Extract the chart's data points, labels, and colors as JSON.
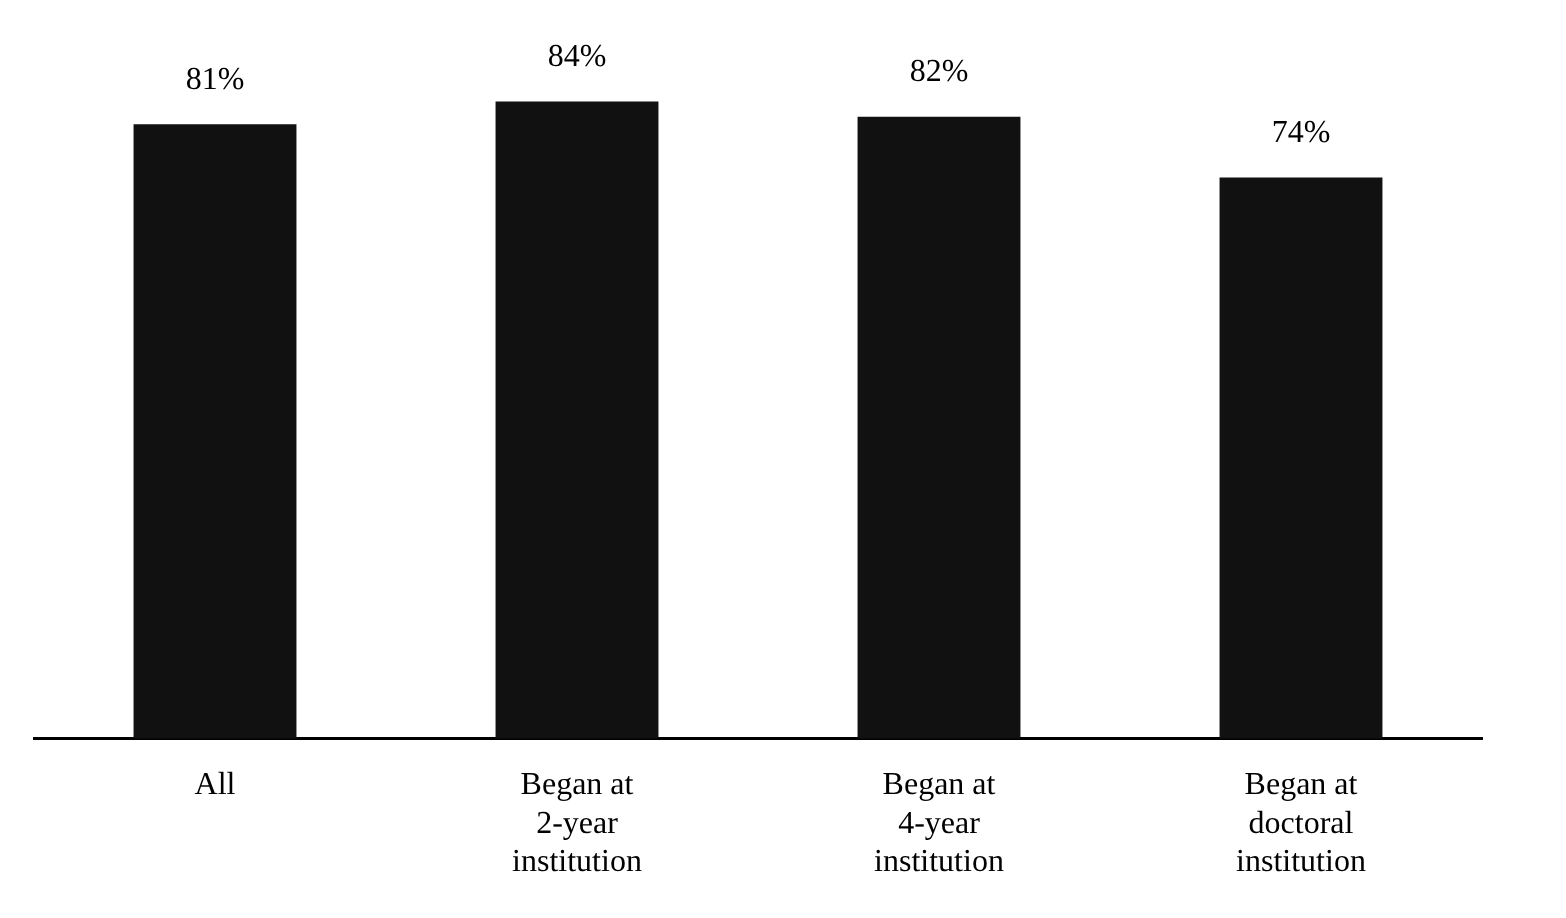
{
  "chart_data": {
    "type": "bar",
    "categories": [
      "All",
      "Began at 2-year institution",
      "Began at 4-year institution",
      "Began at doctoral institution"
    ],
    "values": [
      81,
      84,
      82,
      74
    ],
    "value_labels": [
      "81%",
      "84%",
      "82%",
      "74%"
    ],
    "color": "#111111",
    "tick_labels": "x",
    "grid": false,
    "legend": false
  }
}
